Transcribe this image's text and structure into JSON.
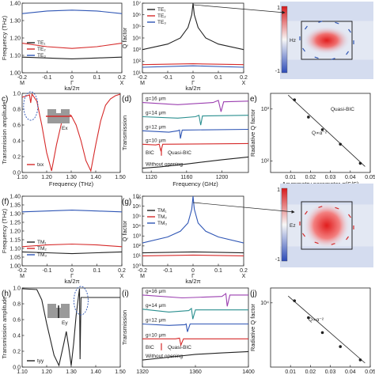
{
  "colors": {
    "black": "#222222",
    "red": "#d62a2a",
    "blue": "#2f56b5",
    "green": "#2e9e6a",
    "purple": "#9b3fb0",
    "teal": "#2a8f8f"
  },
  "chart_data": [
    {
      "id": "a",
      "panel_label": "",
      "type": "line",
      "xlabel": "ka/2π",
      "ylabel": "Frequency (THz)",
      "xlim": [
        -0.2,
        0.2
      ],
      "ylim": [
        1.0,
        1.4
      ],
      "xticks": [
        "-0.2",
        "-0.1",
        "0",
        "0.1",
        "0.2"
      ],
      "yticks": [
        "1.00",
        "1.10",
        "1.20",
        "1.30",
        "1.40"
      ],
      "xends": [
        "M",
        "Γ",
        "X"
      ],
      "series": [
        {
          "name": "TE₁",
          "color": "#222222",
          "x": [
            -0.2,
            -0.1,
            0,
            0.1,
            0.2
          ],
          "y": [
            1.09,
            1.085,
            1.08,
            1.085,
            1.09
          ]
        },
        {
          "name": "TE₂",
          "color": "#d62a2a",
          "x": [
            -0.2,
            -0.1,
            0,
            0.1,
            0.2
          ],
          "y": [
            1.17,
            1.15,
            1.14,
            1.15,
            1.17
          ]
        },
        {
          "name": "TE₃",
          "color": "#2f56b5",
          "x": [
            -0.2,
            -0.1,
            0,
            0.1,
            0.2
          ],
          "y": [
            1.34,
            1.355,
            1.36,
            1.355,
            1.34
          ]
        }
      ]
    },
    {
      "id": "b",
      "panel_label": "",
      "type": "line",
      "xlabel": "ka/2π",
      "ylabel": "Q factor",
      "yscale": "log",
      "xlim": [
        -0.2,
        0.2
      ],
      "ylim": [
        10,
        10000000
      ],
      "xticks": [
        "-0.2",
        "-0.1",
        "0",
        "0.1",
        "0.2"
      ],
      "yticks": [
        "10¹",
        "10²",
        "10³",
        "10⁴",
        "10⁵",
        "10⁶",
        "10⁷"
      ],
      "xends": [
        "M",
        "Γ",
        "X"
      ],
      "series": [
        {
          "name": "TE₁",
          "color": "#222222",
          "x": [
            -0.2,
            -0.1,
            -0.05,
            -0.02,
            -0.005,
            0,
            0.005,
            0.02,
            0.05,
            0.1,
            0.2
          ],
          "y": [
            1000,
            3000,
            10000,
            80000,
            1000000,
            10000000,
            1000000,
            80000,
            10000,
            3000,
            1000
          ]
        },
        {
          "name": "TE₂",
          "color": "#d62a2a",
          "x": [
            -0.2,
            0,
            0.2
          ],
          "y": [
            50,
            60,
            50
          ]
        },
        {
          "name": "TE₃",
          "color": "#2f56b5",
          "x": [
            -0.2,
            0,
            0.2
          ],
          "y": [
            30,
            40,
            30
          ]
        }
      ]
    },
    {
      "id": "c",
      "panel_label": "c)",
      "type": "line",
      "xlabel": "Frequency (THz)",
      "ylabel": "Transmission amplitude",
      "xlim": [
        1.1,
        1.5
      ],
      "ylim": [
        0,
        1
      ],
      "xticks": [
        "1.10",
        "1.20",
        "1.30",
        "1.40",
        "1.50"
      ],
      "yticks": [
        "0.0",
        "0.2",
        "0.4",
        "0.6",
        "0.8",
        "1.0"
      ],
      "inset_label": "Ex",
      "series": [
        {
          "name": "txx",
          "color": "#d62a2a",
          "x": [
            1.1,
            1.13,
            1.135,
            1.14,
            1.145,
            1.16,
            1.18,
            1.2,
            1.22,
            1.24,
            1.26,
            1.28,
            1.3,
            1.32,
            1.34,
            1.36,
            1.38,
            1.4,
            1.42,
            1.44,
            1.46,
            1.48,
            1.5
          ],
          "y": [
            0.95,
            0.98,
            0.88,
            0.99,
            0.97,
            0.9,
            0.6,
            0.25,
            0.02,
            0.35,
            0.62,
            0.75,
            0.72,
            0.6,
            0.4,
            0.15,
            0.02,
            0.35,
            0.65,
            0.85,
            0.93,
            0.97,
            0.99
          ]
        }
      ]
    },
    {
      "id": "d",
      "panel_label": "(d)",
      "type": "line",
      "xlabel": "Frequency (GHz)",
      "ylabel": "Transmission",
      "xlim": [
        1110,
        1230
      ],
      "ylim": [
        0,
        5.6
      ],
      "xticks": [
        "1120",
        "1160",
        "1200"
      ],
      "yticks": [],
      "annotations": [
        "BIC",
        "Quasi-BIC"
      ],
      "series": [
        {
          "name": "g=16 μm",
          "color": "#9b3fb0",
          "dip_x": 1199,
          "offset": 4.5,
          "x": [
            1110,
            1150,
            1190,
            1196,
            1199,
            1202,
            1230
          ],
          "y": [
            4.95,
            4.8,
            4.95,
            5.1,
            4.3,
            5.0,
            5.05
          ]
        },
        {
          "name": "g=14 μm",
          "color": "#2a8f8f",
          "dip_x": 1176,
          "offset": 3.5,
          "x": [
            1110,
            1150,
            1170,
            1174,
            1176,
            1178,
            1230
          ],
          "y": [
            3.95,
            3.85,
            3.95,
            4.05,
            3.35,
            4.0,
            4.05
          ]
        },
        {
          "name": "g=12 μm",
          "color": "#2f56b5",
          "dip_x": 1153,
          "offset": 2.5,
          "x": [
            1110,
            1140,
            1150,
            1152,
            1153,
            1155,
            1230
          ],
          "y": [
            2.95,
            2.85,
            2.95,
            3.0,
            2.4,
            3.0,
            3.05
          ]
        },
        {
          "name": "g=10 μm",
          "color": "#d62a2a",
          "dip_x": 1131,
          "offset": 1.5,
          "x": [
            1110,
            1125,
            1129,
            1131,
            1133,
            1230
          ],
          "y": [
            2.0,
            1.95,
            2.0,
            1.5,
            2.0,
            2.05
          ]
        },
        {
          "name": "Without opening",
          "color": "#222222",
          "x": [
            1110,
            1130,
            1160,
            1200,
            1230
          ],
          "y": [
            0.3,
            0.4,
            0.6,
            0.9,
            1.1
          ]
        }
      ]
    },
    {
      "id": "e",
      "panel_label": "e)",
      "type": "scatter",
      "xlabel": "Asymmetry parameter α(S/S)",
      "ylabel": "Radiative Q factor",
      "yscale": "log",
      "xlim": [
        0.0,
        0.05
      ],
      "ylim": [
        60,
        2000
      ],
      "xticks": [
        "0.01",
        "0.02",
        "0.03",
        "0.04",
        "0.05"
      ],
      "yticks": [
        "10²",
        "10³"
      ],
      "labels": [
        "Quasi-BIC",
        "Q∝α⁻²"
      ],
      "series": [
        {
          "name": "",
          "color": "#222222",
          "x": [
            0.012,
            0.019,
            0.026,
            0.035,
            0.045
          ],
          "y": [
            1500,
            700,
            400,
            210,
            90
          ]
        }
      ]
    },
    {
      "id": "f",
      "panel_label": "(f)",
      "type": "line",
      "xlabel": "ka/2π",
      "ylabel": "Frequency (THz)",
      "xlim": [
        -0.2,
        0.2
      ],
      "ylim": [
        1.0,
        1.4
      ],
      "xticks": [
        "-0.2",
        "-0.1",
        "0",
        "0.1",
        "0.2"
      ],
      "yticks": [
        "1.00",
        "1.05",
        "1.10",
        "1.15",
        "1.20",
        "1.25",
        "1.30",
        "1.35",
        "1.40"
      ],
      "xends": [
        "M",
        "Γ",
        "X"
      ],
      "series": [
        {
          "name": "TM₁",
          "color": "#222222",
          "x": [
            -0.2,
            -0.1,
            0,
            0.1,
            0.2
          ],
          "y": [
            1.08,
            1.075,
            1.07,
            1.075,
            1.08
          ]
        },
        {
          "name": "TM₂",
          "color": "#d62a2a",
          "x": [
            -0.2,
            -0.1,
            0,
            0.1,
            0.2
          ],
          "y": [
            1.11,
            1.12,
            1.125,
            1.12,
            1.11
          ]
        },
        {
          "name": "TM₃",
          "color": "#2f56b5",
          "x": [
            -0.2,
            -0.1,
            0,
            0.1,
            0.2
          ],
          "y": [
            1.31,
            1.315,
            1.32,
            1.315,
            1.31
          ]
        }
      ]
    },
    {
      "id": "g",
      "panel_label": "(g)",
      "type": "line",
      "xlabel": "ka/2π",
      "ylabel": "Q factor",
      "yscale": "log",
      "xlim": [
        -0.2,
        0.2
      ],
      "ylim": [
        1,
        10000000
      ],
      "xticks": [
        "-0.2",
        "-0.1",
        "0",
        "0.1",
        "0.2"
      ],
      "yticks": [
        "10⁰",
        "10¹",
        "10²",
        "10³",
        "10⁴",
        "10⁵",
        "10⁶",
        "10⁷"
      ],
      "top_label": "∞",
      "xends": [
        "M",
        "Γ",
        "X"
      ],
      "series": [
        {
          "name": "TM₁",
          "color": "#222222",
          "x": [
            -0.2,
            0,
            0.2
          ],
          "y": [
            20,
            25,
            20
          ]
        },
        {
          "name": "TM₂",
          "color": "#d62a2a",
          "x": [
            -0.2,
            0,
            0.2
          ],
          "y": [
            10,
            12,
            10
          ]
        },
        {
          "name": "TM₃",
          "color": "#2f56b5",
          "x": [
            -0.2,
            -0.1,
            -0.05,
            -0.02,
            -0.005,
            0,
            0.005,
            0.02,
            0.05,
            0.1,
            0.2
          ],
          "y": [
            200,
            800,
            3000,
            20000,
            500000,
            10000000,
            500000,
            20000,
            3000,
            800,
            200
          ]
        }
      ]
    },
    {
      "id": "h",
      "panel_label": "(h)",
      "type": "line",
      "xlabel": "Frequency (THz)",
      "ylabel": "Transmission amplitude",
      "xlim": [
        1.1,
        1.5
      ],
      "ylim": [
        0,
        1
      ],
      "xticks": [
        "1.10",
        "1.20",
        "1.30",
        "1.40",
        "1.50"
      ],
      "yticks": [
        "0.0",
        "0.2",
        "0.4",
        "0.6",
        "0.8",
        "1.0"
      ],
      "inset_label": "Ey",
      "series": [
        {
          "name": "tyy",
          "color": "#222222",
          "x": [
            1.1,
            1.16,
            1.18,
            1.2,
            1.23,
            1.25,
            1.27,
            1.28,
            1.29,
            1.3,
            1.31,
            1.32,
            1.33,
            1.334,
            1.336,
            1.34,
            1.36,
            1.42,
            1.5
          ],
          "y": [
            0.99,
            0.98,
            0.85,
            0.55,
            0.15,
            0.02,
            0.3,
            0.45,
            0.25,
            0.02,
            0.3,
            0.65,
            0.9,
            0.99,
            0.1,
            0.88,
            0.88,
            0.88,
            0.88
          ]
        }
      ]
    },
    {
      "id": "i",
      "panel_label": "(i)",
      "type": "line",
      "xlabel": "",
      "ylabel": "Transmission",
      "xlim": [
        1320,
        1400
      ],
      "ylim": [
        0,
        5.6
      ],
      "xticks": [
        "1320",
        "1360",
        "1400"
      ],
      "yticks": [],
      "annotations": [
        "BIC",
        "Quasi-BIC"
      ],
      "series": [
        {
          "name": "g=16 μm",
          "color": "#9b3fb0",
          "dip_x": 1384,
          "offset": 4.5,
          "x": [
            1320,
            1350,
            1380,
            1383,
            1384,
            1386,
            1400
          ],
          "y": [
            5.1,
            4.9,
            5.0,
            5.2,
            4.3,
            5.1,
            5.1
          ]
        },
        {
          "name": "g=14 μm",
          "color": "#2a8f8f",
          "dip_x": 1358,
          "offset": 3.5,
          "x": [
            1320,
            1340,
            1355,
            1357,
            1358,
            1360,
            1400
          ],
          "y": [
            4.1,
            3.9,
            4.0,
            4.15,
            3.4,
            4.05,
            4.05
          ]
        },
        {
          "name": "g=12 μm",
          "color": "#2f56b5",
          "dip_x": 1354,
          "offset": 2.5,
          "x": [
            1320,
            1340,
            1352,
            1353,
            1354,
            1356,
            1400
          ],
          "y": [
            3.05,
            2.95,
            3.0,
            3.05,
            2.5,
            3.05,
            3.05
          ]
        },
        {
          "name": "g=10 μm",
          "color": "#d62a2a",
          "dip_x": 1349,
          "offset": 1.5,
          "x": [
            1320,
            1345,
            1348,
            1349,
            1351,
            1400
          ],
          "y": [
            2.0,
            2.0,
            2.05,
            1.55,
            2.0,
            2.0
          ]
        },
        {
          "name": "Without opening",
          "color": "#222222",
          "x": [
            1320,
            1340,
            1360,
            1380,
            1400
          ],
          "y": [
            0.5,
            0.7,
            0.9,
            1.0,
            1.1
          ]
        }
      ]
    },
    {
      "id": "j",
      "panel_label": "(j)",
      "type": "scatter",
      "xlabel": "",
      "ylabel": "Radiative Q factor",
      "yscale": "log",
      "xlim": [
        0.0,
        0.05
      ],
      "ylim": [
        500,
        20000
      ],
      "xticks": [
        "0.01",
        "0.02",
        "0.03",
        "0.04",
        "0.05"
      ],
      "yticks": [
        "10⁴"
      ],
      "labels": [
        "Q∝α⁻²"
      ],
      "series": [
        {
          "name": "",
          "color": "#222222",
          "x": [
            0.012,
            0.019,
            0.026,
            0.035,
            0.045
          ],
          "y": [
            11000,
            5000,
            2500,
            1300,
            700
          ]
        }
      ]
    }
  ],
  "fieldmaps": [
    {
      "id": "hz",
      "label": "Hz",
      "ticks": [
        "1",
        "-1"
      ]
    },
    {
      "id": "ez",
      "label": "Ez",
      "ticks": [
        "1",
        "-1"
      ]
    }
  ]
}
